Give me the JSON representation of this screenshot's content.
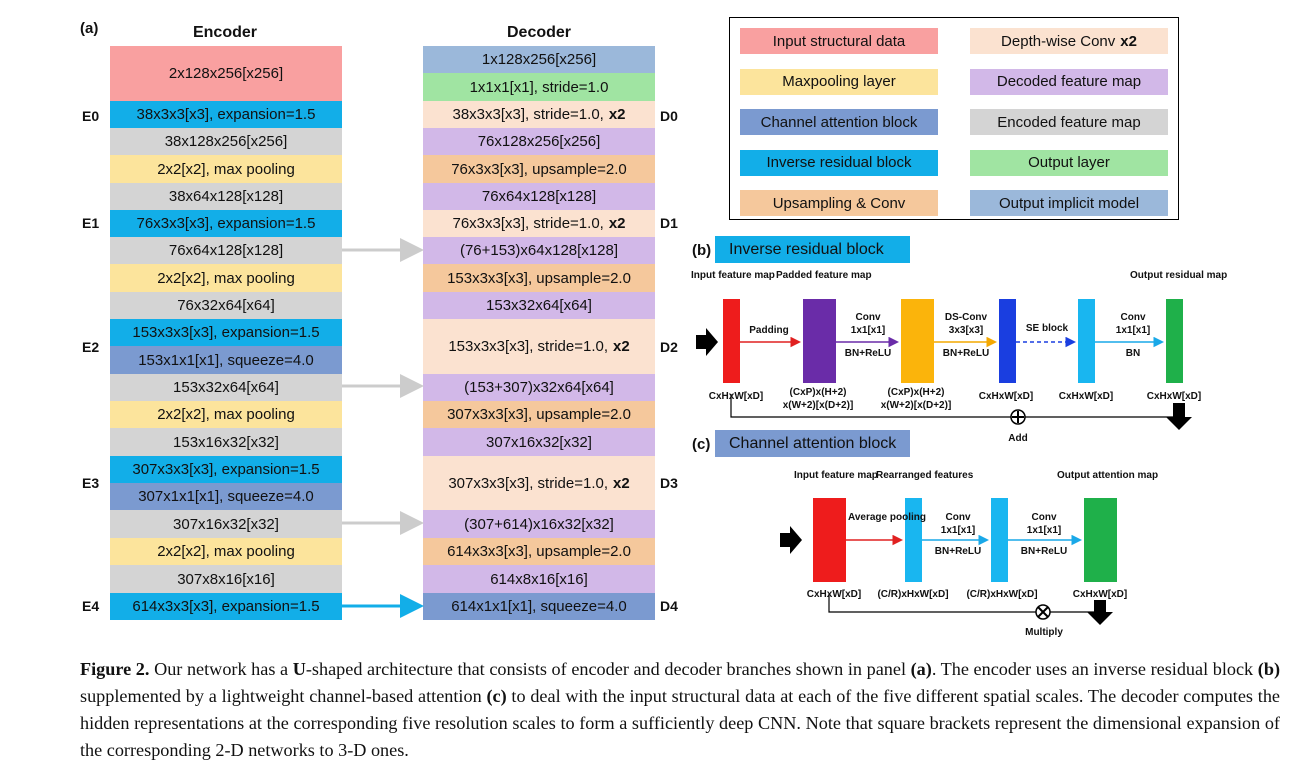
{
  "colors": {
    "input": "#f9a0a0",
    "maxpool": "#fce49c",
    "channel_attention": "#7b9ad0",
    "inverse_residual": "#12aee8",
    "upsampling_conv": "#f5c89c",
    "depthwise_conv": "#fbe2d0",
    "decoded_map": "#d2b8e8",
    "encoded_map": "#d4d4d4",
    "output_layer": "#a0e4a2",
    "output_implicit": "#9bb8da",
    "skip_arrow": "#cccccc",
    "bottom_arrow": "#12aee8"
  },
  "panel_a": {
    "label": "(a)",
    "encoder_title": "Encoder",
    "decoder_title": "Decoder",
    "encoder": [
      {
        "text": "2x128x256[x256]",
        "bold": "",
        "type": "input"
      },
      {
        "text": "38x3x3[x3], expansion=1.5",
        "bold": "",
        "type": "inverse_residual"
      },
      {
        "text": "38x128x256[x256]",
        "bold": "",
        "type": "encoded_map"
      },
      {
        "text": "2x2[x2], max pooling",
        "bold": "",
        "type": "maxpool"
      },
      {
        "text": "38x64x128[x128]",
        "bold": "",
        "type": "encoded_map"
      },
      {
        "text": "76x3x3[x3], expansion=1.5",
        "bold": "",
        "type": "inverse_residual"
      },
      {
        "text": "76x64x128[x128]",
        "bold": "",
        "type": "encoded_map"
      },
      {
        "text": "2x2[x2], max pooling",
        "bold": "",
        "type": "maxpool"
      },
      {
        "text": "76x32x64[x64]",
        "bold": "",
        "type": "encoded_map"
      },
      {
        "text": "153x3x3[x3], expansion=1.5",
        "bold": "",
        "type": "inverse_residual"
      },
      {
        "text": "153x1x1[x1], squeeze=4.0",
        "bold": "",
        "type": "channel_attention"
      },
      {
        "text": "153x32x64[x64]",
        "bold": "",
        "type": "encoded_map"
      },
      {
        "text": "2x2[x2], max pooling",
        "bold": "",
        "type": "maxpool"
      },
      {
        "text": "153x16x32[x32]",
        "bold": "",
        "type": "encoded_map"
      },
      {
        "text": "307x3x3[x3], expansion=1.5",
        "bold": "",
        "type": "inverse_residual"
      },
      {
        "text": "307x1x1[x1], squeeze=4.0",
        "bold": "",
        "type": "channel_attention"
      },
      {
        "text": "307x16x32[x32]",
        "bold": "",
        "type": "encoded_map"
      },
      {
        "text": "2x2[x2], max pooling",
        "bold": "",
        "type": "maxpool"
      },
      {
        "text": "307x8x16[x16]",
        "bold": "",
        "type": "encoded_map"
      },
      {
        "text": "614x3x3[x3], expansion=1.5",
        "bold": "",
        "type": "inverse_residual"
      }
    ],
    "decoder": [
      {
        "text": "1x128x256[x256]",
        "bold": "",
        "type": "output_implicit"
      },
      {
        "text": "1x1x1[x1], stride=1.0",
        "bold": "",
        "type": "output_layer"
      },
      {
        "text": "38x3x3[x3], stride=1.0,",
        "bold": "x2",
        "type": "depthwise_conv"
      },
      {
        "text": "76x128x256[x256]",
        "bold": "",
        "type": "decoded_map"
      },
      {
        "text": "76x3x3[x3], upsample=2.0",
        "bold": "",
        "type": "upsampling_conv"
      },
      {
        "text": "76x64x128[x128]",
        "bold": "",
        "type": "decoded_map"
      },
      {
        "text": "76x3x3[x3], stride=1.0,",
        "bold": "x2",
        "type": "depthwise_conv"
      },
      {
        "text": "(76+153)x64x128[x128]",
        "bold": "",
        "type": "decoded_map"
      },
      {
        "text": "153x3x3[x3], upsample=2.0",
        "bold": "",
        "type": "upsampling_conv"
      },
      {
        "text": "153x32x64[x64]",
        "bold": "",
        "type": "decoded_map"
      },
      {
        "text": "153x3x3[x3], stride=1.0,",
        "bold": "x2",
        "type": "depthwise_conv"
      },
      {
        "text": "(153+307)x32x64[x64]",
        "bold": "",
        "type": "decoded_map"
      },
      {
        "text": "307x3x3[x3], upsample=2.0",
        "bold": "",
        "type": "upsampling_conv"
      },
      {
        "text": "307x16x32[x32]",
        "bold": "",
        "type": "decoded_map"
      },
      {
        "text": "307x3x3[x3], stride=1.0,",
        "bold": "x2",
        "type": "depthwise_conv"
      },
      {
        "text": "(307+614)x16x32[x32]",
        "bold": "",
        "type": "decoded_map"
      },
      {
        "text": "614x3x3[x3], upsample=2.0",
        "bold": "",
        "type": "upsampling_conv"
      },
      {
        "text": "614x8x16[x16]",
        "bold": "",
        "type": "decoded_map"
      },
      {
        "text": "614x1x1[x1], squeeze=4.0",
        "bold": "",
        "type": "channel_attention"
      }
    ],
    "encoder_stages": [
      "E0",
      "E1",
      "E2",
      "E3",
      "E4"
    ],
    "decoder_stages": [
      "D0",
      "D1",
      "D2",
      "D3",
      "D4"
    ]
  },
  "legend": [
    {
      "label": "Input structural data",
      "bold": "",
      "type": "input"
    },
    {
      "label": "Depth-wise Conv",
      "bold": "x2",
      "type": "depthwise_conv"
    },
    {
      "label": "Maxpooling layer",
      "bold": "",
      "type": "maxpool"
    },
    {
      "label": "Decoded feature map",
      "bold": "",
      "type": "decoded_map"
    },
    {
      "label": "Channel attention block",
      "bold": "",
      "type": "channel_attention"
    },
    {
      "label": "Encoded feature map",
      "bold": "",
      "type": "encoded_map"
    },
    {
      "label": "Inverse residual block",
      "bold": "",
      "type": "inverse_residual"
    },
    {
      "label": "Output layer",
      "bold": "",
      "type": "output_layer"
    },
    {
      "label": "Upsampling & Conv",
      "bold": "",
      "type": "upsampling_conv"
    },
    {
      "label": "Output implicit model",
      "bold": "",
      "type": "output_implicit"
    }
  ],
  "panel_b": {
    "label": "(b)",
    "title": "Inverse residual block",
    "input_label": "Input feature map",
    "padded_label": "Padded feature map",
    "output_label": "Output residual map",
    "op_padding": "Padding",
    "op_conv1": "Conv",
    "op_conv1_k": "1x1[x1]",
    "op_conv1_act": "BN+ReLU",
    "op_ds": "DS-Conv",
    "op_ds_k": "3x3[x3]",
    "op_ds_act": "BN+ReLU",
    "op_se": "SE block",
    "op_conv2": "Conv",
    "op_conv2_k": "1x1[x1]",
    "op_conv2_act": "BN",
    "dim_in": "CxHxW[xD]",
    "dim_pad_1": "(CxP)x(H+2)",
    "dim_pad_2": "x(W+2)[x(D+2)]",
    "dim_ds_1": "(CxP)x(H+2)",
    "dim_ds_2": "x(W+2)[x(D+2)]",
    "dim_se": "CxHxW[xD]",
    "dim_after": "CxHxW[xD]",
    "dim_out": "CxHxW[xD]",
    "add_label": "Add"
  },
  "panel_c": {
    "label": "(c)",
    "title": "Channel attention block",
    "input_label": "Input feature map",
    "rearranged_label": "Rearranged features",
    "output_label": "Output attention map",
    "op_pool": "Average pooling",
    "op_conv1": "Conv",
    "op_conv1_k": "1x1[x1]",
    "op_conv1_act": "BN+ReLU",
    "op_conv2": "Conv",
    "op_conv2_k": "1x1[x1]",
    "op_conv2_act": "BN+ReLU",
    "dim_in": "CxHxW[xD]",
    "dim_r1": "(C/R)xHxW[xD]",
    "dim_r2": "(C/R)xHxW[xD]",
    "dim_out": "CxHxW[xD]",
    "multiply_label": "Multiply"
  },
  "caption": {
    "fig": "Figure 2.",
    "t1": " Our network has a ",
    "b1": "U",
    "t2": "-shaped architecture that consists of encoder and decoder branches shown in panel ",
    "b2": "(a)",
    "t3": ". The encoder uses an inverse residual block ",
    "b3": "(b)",
    "t4": " supplemented by a lightweight channel-based attention ",
    "b4": "(c)",
    "t5": " to deal with the input structural data at each of the five different spatial scales. The decoder computes the hidden representations at the corresponding five resolution scales to form a sufficiently deep CNN. Note that square brackets represent the dimensional expansion of the corresponding 2-D networks to 3-D ones."
  }
}
